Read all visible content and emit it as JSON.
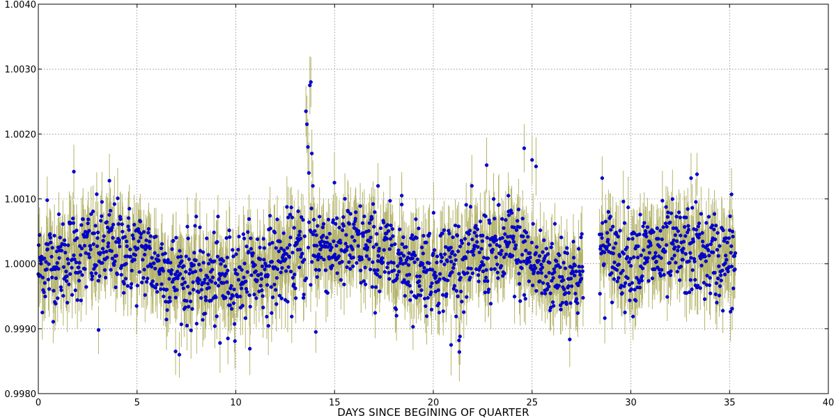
{
  "chart_data": {
    "type": "scatter",
    "title": "",
    "xlabel": "DAYS SINCE BEGINING OF QUARTER",
    "ylabel": "",
    "xlim": [
      0,
      40
    ],
    "ylim": [
      0.998,
      1.004
    ],
    "grid": true,
    "x_ticks": [
      0,
      5,
      10,
      15,
      20,
      25,
      30,
      35,
      40
    ],
    "x_tick_labels": [
      "0",
      "5",
      "10",
      "15",
      "20",
      "25",
      "30",
      "35",
      "40"
    ],
    "y_ticks": [
      0.998,
      0.999,
      1.0,
      1.001,
      1.002,
      1.003,
      1.004
    ],
    "y_tick_labels": [
      "0.9980",
      "0.9990",
      "1.0000",
      "1.0010",
      "1.0020",
      "1.0030",
      "1.0040"
    ],
    "x_range_observed": [
      0.0,
      35.3
    ],
    "data_gap": [
      27.6,
      28.4
    ],
    "baseline_trend": [
      {
        "x": 0,
        "y": 0.99995
      },
      {
        "x": 2,
        "y": 1.00015
      },
      {
        "x": 4,
        "y": 1.00025
      },
      {
        "x": 5.5,
        "y": 1.0001
      },
      {
        "x": 7,
        "y": 0.9998
      },
      {
        "x": 9,
        "y": 0.99975
      },
      {
        "x": 11,
        "y": 0.9999
      },
      {
        "x": 13,
        "y": 1.0001
      },
      {
        "x": 14.2,
        "y": 1.0003
      },
      {
        "x": 16,
        "y": 1.00025
      },
      {
        "x": 18,
        "y": 1.0001
      },
      {
        "x": 20,
        "y": 0.99995
      },
      {
        "x": 22,
        "y": 1.0001
      },
      {
        "x": 24,
        "y": 1.00025
      },
      {
        "x": 25.5,
        "y": 0.9999
      },
      {
        "x": 27.6,
        "y": 0.9998
      },
      {
        "x": 28.4,
        "y": 1.0002
      },
      {
        "x": 30,
        "y": 1.0001
      },
      {
        "x": 33,
        "y": 1.0002
      },
      {
        "x": 35.3,
        "y": 1.0
      }
    ],
    "scatter_rms": 0.00035,
    "errorbar_halfwidth": 0.0004,
    "sampling_interval_days": 0.0204,
    "notable_points": [
      {
        "x": 13.55,
        "y": 1.00235
      },
      {
        "x": 13.6,
        "y": 1.00215
      },
      {
        "x": 13.65,
        "y": 1.0018
      },
      {
        "x": 13.75,
        "y": 1.00275
      },
      {
        "x": 13.8,
        "y": 1.0028
      },
      {
        "x": 13.85,
        "y": 1.0017
      },
      {
        "x": 13.9,
        "y": 1.0012
      },
      {
        "x": 13.7,
        "y": 1.0014
      },
      {
        "x": 14.05,
        "y": 0.99895
      },
      {
        "x": 1.8,
        "y": 1.00142
      },
      {
        "x": 0.45,
        "y": 1.00098
      },
      {
        "x": 3.6,
        "y": 1.00128
      },
      {
        "x": 6.95,
        "y": 0.99865
      },
      {
        "x": 3.05,
        "y": 0.99898
      },
      {
        "x": 9.2,
        "y": 0.99878
      },
      {
        "x": 9.6,
        "y": 0.99885
      },
      {
        "x": 20.9,
        "y": 0.99875
      },
      {
        "x": 21.3,
        "y": 0.99882
      },
      {
        "x": 21.35,
        "y": 0.99888
      },
      {
        "x": 22.7,
        "y": 1.00152
      },
      {
        "x": 24.6,
        "y": 1.00178
      },
      {
        "x": 25.0,
        "y": 1.0016
      },
      {
        "x": 25.2,
        "y": 1.0015
      },
      {
        "x": 28.55,
        "y": 1.00132
      },
      {
        "x": 33.05,
        "y": 1.00132
      },
      {
        "x": 33.35,
        "y": 1.00138
      },
      {
        "x": 35.1,
        "y": 1.00107
      },
      {
        "x": 17.2,
        "y": 1.0012
      },
      {
        "x": 18.4,
        "y": 1.00105
      },
      {
        "x": 23.8,
        "y": 1.00105
      }
    ],
    "series": [
      {
        "name": "flux",
        "marker": "circle",
        "color": "#0000e0",
        "errorbar_color": "#b3b36b"
      }
    ]
  }
}
